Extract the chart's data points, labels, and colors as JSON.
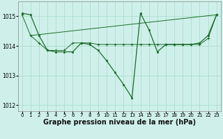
{
  "background_color": "#cff0ea",
  "grid_color": "#aaddcc",
  "line_color": "#1a6b2a",
  "xlabel": "Graphe pression niveau de la mer (hPa)",
  "xlabel_fontsize": 7,
  "ylim": [
    1011.8,
    1015.5
  ],
  "yticks": [
    1012,
    1013,
    1014,
    1015
  ],
  "xlim": [
    -0.5,
    23.5
  ],
  "xticks": [
    0,
    1,
    2,
    3,
    4,
    5,
    6,
    7,
    8,
    9,
    10,
    11,
    12,
    13,
    14,
    15,
    16,
    17,
    18,
    19,
    20,
    21,
    22,
    23
  ],
  "line1_x": [
    0,
    1,
    2,
    3,
    4,
    5,
    6,
    7,
    8,
    9,
    10,
    11,
    12,
    13,
    14,
    15,
    16,
    17,
    18,
    19,
    20,
    21,
    22,
    23
  ],
  "line1_y": [
    1015.1,
    1015.05,
    1014.35,
    1013.85,
    1013.8,
    1013.8,
    1013.8,
    1014.1,
    1014.05,
    1013.85,
    1013.5,
    1013.1,
    1012.7,
    1012.25,
    1015.1,
    1014.55,
    1013.8,
    1014.05,
    1014.05,
    1014.05,
    1014.05,
    1014.1,
    1014.35,
    1015.05
  ],
  "line2_x": [
    1,
    23
  ],
  "line2_y": [
    1014.35,
    1015.05
  ],
  "line3_x": [
    0,
    1,
    2,
    3,
    4,
    5,
    6,
    7,
    8,
    9,
    10,
    11,
    12,
    13,
    14,
    15,
    16,
    17,
    18,
    19,
    20,
    21,
    22,
    23
  ],
  "line3_y": [
    1015.05,
    1014.35,
    1014.1,
    1013.85,
    1013.85,
    1013.85,
    1014.1,
    1014.1,
    1014.1,
    1014.05,
    1014.05,
    1014.05,
    1014.05,
    1014.05,
    1014.05,
    1014.05,
    1014.05,
    1014.05,
    1014.05,
    1014.05,
    1014.05,
    1014.05,
    1014.25,
    1015.05
  ]
}
